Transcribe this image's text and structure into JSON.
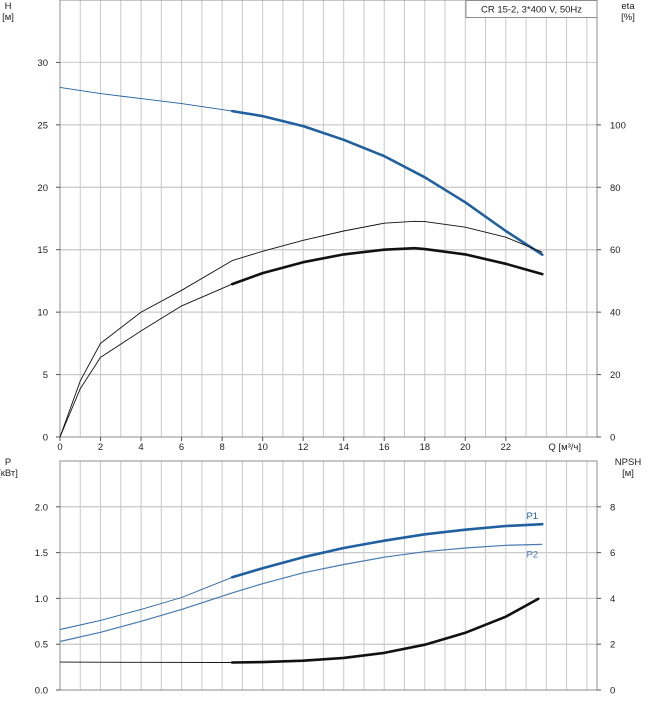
{
  "colors": {
    "blue": "#2060a0",
    "black": "#111111",
    "grid": "#c8c8c8",
    "thin_blue": "#4a7ab0"
  },
  "chart_data": [
    {
      "type": "line",
      "panel": "top",
      "title": "CR 15-2, 3*400 V, 50Hz",
      "xlabel": "Q [м³/ч]",
      "x_ticks": [
        "0",
        "2",
        "4",
        "6",
        "8",
        "10",
        "12",
        "14",
        "16",
        "18",
        "20",
        "22"
      ],
      "xlim": [
        0,
        26.5
      ],
      "left_axis": {
        "unit_top": "H",
        "unit_bottom": "[м]",
        "ylim": [
          0,
          35
        ],
        "ticks": [
          "0",
          "5",
          "10",
          "15",
          "20",
          "25",
          "30"
        ]
      },
      "right_axis": {
        "unit_top": "eta",
        "unit_bottom": "[%]",
        "ylim": [
          0,
          140
        ],
        "ticks": [
          "0",
          "20",
          "40",
          "60",
          "80",
          "100"
        ]
      },
      "grid": true,
      "series": [
        {
          "axis": "left",
          "color": "blue",
          "points": [
            [
              0,
              28.0
            ],
            [
              2,
              27.5
            ],
            [
              4,
              27.1
            ],
            [
              6,
              26.7
            ],
            [
              8.5,
              26.1
            ],
            [
              10,
              25.7
            ],
            [
              12,
              24.9
            ],
            [
              14,
              23.8
            ],
            [
              16,
              22.5
            ],
            [
              18,
              20.8
            ],
            [
              20,
              18.8
            ],
            [
              22,
              16.5
            ],
            [
              23.8,
              14.6
            ]
          ],
          "bold_from": 8.5
        },
        {
          "axis": "right",
          "color": "black",
          "points": [
            [
              0,
              0
            ],
            [
              1,
              18
            ],
            [
              2,
              30
            ],
            [
              4,
              40
            ],
            [
              6,
              47
            ],
            [
              8.5,
              56.5
            ],
            [
              10,
              59.5
            ],
            [
              12,
              63
            ],
            [
              14,
              66
            ],
            [
              16,
              68.5
            ],
            [
              17.5,
              69.1
            ],
            [
              18,
              69
            ],
            [
              20,
              67.2
            ],
            [
              22,
              64
            ],
            [
              23.8,
              59.2
            ]
          ]
        },
        {
          "axis": "right",
          "color": "black",
          "points": [
            [
              0,
              0
            ],
            [
              1,
              15.5
            ],
            [
              2,
              25.5
            ],
            [
              4,
              34
            ],
            [
              6,
              42
            ],
            [
              8.5,
              49
            ],
            [
              10,
              52.5
            ],
            [
              12,
              56
            ],
            [
              14,
              58.5
            ],
            [
              16,
              60
            ],
            [
              17.5,
              60.5
            ],
            [
              18,
              60.2
            ],
            [
              20,
              58.5
            ],
            [
              22,
              55.5
            ],
            [
              23.8,
              52.2
            ]
          ],
          "bold_from": 8.5
        }
      ]
    },
    {
      "type": "line",
      "panel": "bottom",
      "x_ticks": [],
      "xlim": [
        0,
        26.5
      ],
      "left_axis": {
        "unit_top": "P",
        "unit_bottom": "[кВт]",
        "ylim": [
          0,
          2.5
        ],
        "ticks": [
          "0.0",
          "0.5",
          "1.0",
          "1.5",
          "2.0"
        ]
      },
      "right_axis": {
        "unit_top": "NPSH",
        "unit_bottom": "[м]",
        "ylim": [
          0,
          10
        ],
        "ticks": [
          "0",
          "2",
          "4",
          "6",
          "8"
        ]
      },
      "grid": true,
      "series": [
        {
          "name": "P1",
          "axis": "left",
          "color": "blue",
          "points": [
            [
              0,
              0.66
            ],
            [
              2,
              0.76
            ],
            [
              4,
              0.88
            ],
            [
              6,
              1.01
            ],
            [
              8.5,
              1.23
            ],
            [
              10,
              1.33
            ],
            [
              12,
              1.45
            ],
            [
              14,
              1.55
            ],
            [
              16,
              1.63
            ],
            [
              18,
              1.7
            ],
            [
              20,
              1.75
            ],
            [
              22,
              1.79
            ],
            [
              23.8,
              1.81
            ]
          ],
          "bold_from": 8.5
        },
        {
          "name": "P2",
          "axis": "left",
          "color": "thin_blue",
          "points": [
            [
              0,
              0.53
            ],
            [
              2,
              0.63
            ],
            [
              4,
              0.75
            ],
            [
              6,
              0.88
            ],
            [
              8.5,
              1.06
            ],
            [
              10,
              1.16
            ],
            [
              12,
              1.28
            ],
            [
              14,
              1.37
            ],
            [
              16,
              1.45
            ],
            [
              18,
              1.51
            ],
            [
              20,
              1.55
            ],
            [
              22,
              1.58
            ],
            [
              23.8,
              1.59
            ]
          ]
        },
        {
          "axis": "right",
          "color": "black",
          "points": [
            [
              0,
              1.22
            ],
            [
              4,
              1.21
            ],
            [
              8.5,
              1.2
            ],
            [
              10,
              1.22
            ],
            [
              12,
              1.28
            ],
            [
              14,
              1.4
            ],
            [
              16,
              1.62
            ],
            [
              18,
              1.98
            ],
            [
              20,
              2.5
            ],
            [
              22,
              3.2
            ],
            [
              23.6,
              3.98
            ]
          ],
          "bold_from": 8.5
        }
      ]
    }
  ]
}
